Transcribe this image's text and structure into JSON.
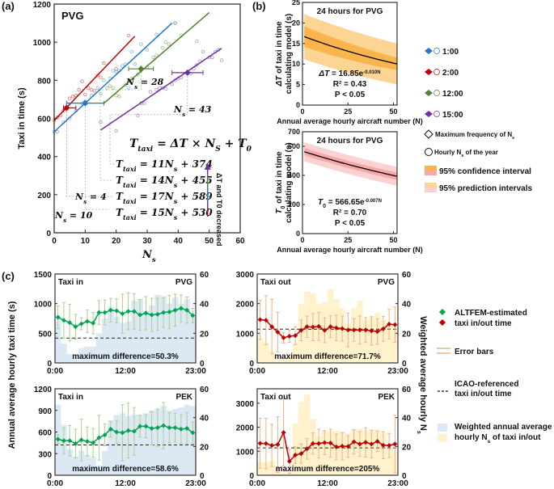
{
  "panel_labels": {
    "a": "(a)",
    "b": "(b)",
    "c": "(c)"
  },
  "chart_data": [
    {
      "id": "a",
      "type": "scatter",
      "title": "PVG",
      "xlabel": "N_s",
      "ylabel": "Taxi in time (s)",
      "xlim": [
        0,
        60
      ],
      "ylim": [
        0,
        1200
      ],
      "xticks": [
        0,
        10,
        20,
        30,
        40,
        50,
        60
      ],
      "yticks": [
        0,
        200,
        400,
        600,
        800,
        1000,
        1200
      ],
      "formula": "T_taxi = ΔT × N_S + T_0",
      "arrow_label": "ΔT and T0 decreased",
      "series": [
        {
          "name": "2:00",
          "color": "#c00000",
          "slope": 17,
          "intercept": 589,
          "fit_x": [
            0,
            26
          ],
          "mode_ns": 4,
          "mode_y": 655,
          "xerr": [
            3,
            7
          ],
          "ns_label": "N_s = 4",
          "equation": "T_taxi = 17N_s + 589",
          "points": [
            [
              0,
              590
            ],
            [
              1,
              605
            ],
            [
              2,
              615
            ],
            [
              3,
              640
            ],
            [
              5,
              705
            ],
            [
              6,
              715
            ],
            [
              7,
              720
            ],
            [
              8,
              750
            ],
            [
              9,
              795
            ],
            [
              10,
              725
            ],
            [
              11,
              760
            ],
            [
              12,
              750
            ],
            [
              13,
              745
            ],
            [
              14,
              825
            ],
            [
              15,
              815
            ],
            [
              16,
              890
            ],
            [
              20,
              860
            ],
            [
              24,
              1035
            ]
          ]
        },
        {
          "name": "1:00",
          "color": "#1f78c8",
          "slope": 15,
          "intercept": 530,
          "fit_x": [
            0,
            38
          ],
          "mode_ns": 10,
          "mode_y": 680,
          "xerr": [
            4,
            16
          ],
          "ns_label": "N_s = 10",
          "equation": "T_taxi = 15N_s + 530",
          "points": [
            [
              0,
              530
            ],
            [
              1,
              530
            ],
            [
              3,
              580
            ],
            [
              5,
              600
            ],
            [
              7,
              640
            ],
            [
              9,
              680
            ],
            [
              10,
              690
            ],
            [
              12,
              720
            ],
            [
              14,
              760
            ],
            [
              16,
              800
            ],
            [
              18,
              810
            ],
            [
              19,
              850
            ],
            [
              20,
              845
            ],
            [
              21,
              850
            ],
            [
              22,
              875
            ],
            [
              23,
              885
            ],
            [
              24,
              760
            ],
            [
              25,
              950
            ],
            [
              26,
              885
            ],
            [
              28,
              990
            ],
            [
              30,
              960
            ],
            [
              33,
              1040
            ],
            [
              39,
              1100
            ]
          ]
        },
        {
          "name": "12:00",
          "color": "#548235",
          "slope": 14,
          "intercept": 455,
          "fit_x": [
            16,
            50
          ],
          "mode_ns": 28,
          "mode_y": 860,
          "xerr": [
            24,
            32
          ],
          "ns_label": "N_s = 28",
          "equation": "T_taxi = 14N_s + 455",
          "points": [
            [
              15,
              730
            ],
            [
              17,
              760
            ],
            [
              18,
              770
            ],
            [
              19,
              760
            ],
            [
              20,
              720
            ],
            [
              21,
              715
            ],
            [
              23,
              775
            ],
            [
              25,
              810
            ],
            [
              27,
              830
            ],
            [
              28,
              850
            ],
            [
              30,
              870
            ],
            [
              32,
              920
            ],
            [
              33,
              930
            ],
            [
              35,
              970
            ],
            [
              36,
              1000
            ],
            [
              37,
              990
            ],
            [
              39,
              1100
            ],
            [
              41,
              1035
            ],
            [
              46,
              1005
            ]
          ]
        },
        {
          "name": "15:00",
          "color": "#7030a0",
          "slope": 11,
          "intercept": 374,
          "fit_x": [
            15,
            54
          ],
          "mode_ns": 43,
          "mode_y": 840,
          "xerr": [
            38,
            48
          ],
          "ns_label": "N_s = 43",
          "equation": "T_taxi = 11N_s + 374",
          "points": [
            [
              15,
              580
            ],
            [
              20,
              535
            ],
            [
              27,
              615
            ],
            [
              28,
              680
            ],
            [
              29,
              680
            ],
            [
              31,
              740
            ],
            [
              33,
              750
            ],
            [
              34,
              760
            ],
            [
              35,
              760
            ],
            [
              36,
              755
            ],
            [
              38,
              780
            ],
            [
              39,
              800
            ],
            [
              40,
              810
            ],
            [
              41,
              815
            ],
            [
              43,
              840
            ],
            [
              44,
              835
            ],
            [
              45,
              860
            ],
            [
              46,
              880
            ],
            [
              47,
              900
            ],
            [
              48,
              950
            ],
            [
              50,
              920
            ],
            [
              51,
              920
            ],
            [
              52,
              950
            ],
            [
              53,
              960
            ],
            [
              54,
              905
            ]
          ]
        }
      ]
    },
    {
      "id": "b-top",
      "type": "line",
      "title": "24 hours for PVG",
      "xlabel": "Annual average hourly aircraft number (N)",
      "ylabel": "ΔT of taxi in time calculating model (s)",
      "xlim": [
        0,
        52
      ],
      "ylim": [
        0,
        25
      ],
      "xticks": [
        0,
        25,
        50
      ],
      "yticks": [
        0,
        5,
        10,
        15,
        20,
        25
      ],
      "equation": "ΔT = 16.85e",
      "exponent": "-0.010N",
      "r2": "R² = 0.43",
      "p": "P < 0.05",
      "a": 16.85,
      "b": -0.01,
      "ci_halfwidth": [
        2.5,
        1.5
      ],
      "pi_halfwidth": [
        5.5,
        5.0
      ],
      "colors": {
        "line": "#000000",
        "ci": "#f9b44c",
        "pi": "#fcd595"
      }
    },
    {
      "id": "b-bottom",
      "type": "line",
      "title": "24 hours for PVG",
      "xlabel": "Annual average hourly aircraft number (N)",
      "ylabel": "T0 of taxi in time calculating model (s)",
      "xlim": [
        0,
        52
      ],
      "ylim": [
        0,
        700
      ],
      "xticks": [
        0,
        25,
        50
      ],
      "yticks": [
        0,
        200,
        400,
        600,
        700
      ],
      "equation": "T0 = 566.65e",
      "exponent": "-0.007N",
      "r2": "R² = 0.70",
      "p": "P < 0.05",
      "a": 566.65,
      "b": -0.007,
      "ci_halfwidth": [
        25,
        25
      ],
      "pi_halfwidth": [
        65,
        65
      ],
      "colors": {
        "line": "#000000",
        "ci": "#f7a8a8",
        "pi": "#fbd2d2"
      }
    },
    {
      "id": "c-taxi-in-pvg",
      "type": "line",
      "label": "Taxi in",
      "airport": "PVG",
      "ylim": [
        0,
        1500
      ],
      "yticks": [
        0,
        500,
        1000,
        1500
      ],
      "y2lim": [
        0,
        60
      ],
      "y2ticks": [
        0,
        20,
        40,
        60
      ],
      "xticks": [
        "0:00",
        "12:00",
        "23:00"
      ],
      "icao": 420,
      "annotation": "maximum difference=50.3%",
      "color": "#00a550",
      "err_color": "#a9d18e",
      "bar_color": "#dce9f5",
      "values": [
        770,
        720,
        680,
        610,
        660,
        700,
        670,
        850,
        850,
        890,
        880,
        830,
        870,
        870,
        810,
        840,
        810,
        820,
        850,
        860,
        890,
        920,
        890,
        800
      ],
      "err": [
        190,
        300,
        310,
        210,
        100,
        190,
        180,
        200,
        210,
        200,
        200,
        330,
        310,
        300,
        260,
        280,
        280,
        270,
        250,
        280,
        270,
        230,
        220,
        120
      ],
      "bars": [
        28,
        13,
        6,
        4,
        10,
        11,
        11,
        20,
        30,
        38,
        31,
        27,
        28,
        42,
        43,
        35,
        39,
        46,
        45,
        40,
        44,
        40,
        43,
        31
      ]
    },
    {
      "id": "c-taxi-in-pek",
      "type": "line",
      "label": "Taxi in",
      "airport": "PEK",
      "ylim": [
        0,
        1200
      ],
      "yticks": [
        0,
        300,
        600,
        900,
        1200
      ],
      "y2lim": [
        0,
        60
      ],
      "y2ticks": [
        0,
        20,
        40,
        60
      ],
      "xticks": [
        "0:00",
        "12:00",
        "23:00"
      ],
      "icao": 420,
      "annotation": "maximum difference=58.6%",
      "color": "#00a550",
      "err_color": "#a9d18e",
      "bar_color": "#dce9f5",
      "values": [
        500,
        480,
        480,
        440,
        490,
        470,
        450,
        520,
        560,
        640,
        600,
        590,
        620,
        610,
        680,
        680,
        650,
        660,
        690,
        660,
        660,
        640,
        650,
        590
      ],
      "err": [
        60,
        180,
        210,
        200,
        290,
        200,
        200,
        310,
        150,
        110,
        160,
        390,
        380,
        330,
        150,
        160,
        230,
        260,
        320,
        210,
        200,
        200,
        220,
        150
      ],
      "bars": [
        49,
        35,
        18,
        13,
        17,
        14,
        12,
        7,
        17,
        38,
        42,
        43,
        41,
        42,
        42,
        43,
        45,
        46,
        48,
        45,
        46,
        47,
        49,
        48
      ]
    },
    {
      "id": "c-taxi-out-pvg",
      "type": "line",
      "label": "Taxi out",
      "airport": "PVG",
      "ylim": [
        0,
        3000
      ],
      "yticks": [
        0,
        1000,
        2000,
        3000
      ],
      "y2lim": [
        0,
        60
      ],
      "y2ticks": [
        0,
        20,
        40,
        60
      ],
      "xticks": [
        "0:00",
        "12:00",
        "23:00"
      ],
      "icao": 1140,
      "annotation": "maximum difference=71.7%",
      "color": "#c00000",
      "err_color": "#f4b183",
      "bar_color": "#fff2cc",
      "values": [
        1460,
        1440,
        1220,
        1040,
        850,
        900,
        920,
        1100,
        1220,
        1210,
        1230,
        1100,
        1220,
        1180,
        1160,
        1110,
        1110,
        1110,
        1110,
        1080,
        1060,
        1150,
        1310,
        1290
      ],
      "err": [
        660,
        830,
        920,
        670,
        180,
        200,
        300,
        350,
        360,
        460,
        470,
        420,
        370,
        430,
        420,
        570,
        380,
        470,
        420,
        480,
        430,
        420,
        500,
        600
      ],
      "bars": [
        16,
        14,
        8,
        3,
        2,
        6,
        13,
        40,
        48,
        47,
        40,
        41,
        50,
        43,
        37,
        26,
        37,
        42,
        29,
        31,
        34,
        29,
        26,
        24
      ]
    },
    {
      "id": "c-taxi-out-pek",
      "type": "line",
      "label": "Taxi out",
      "airport": "PEK",
      "ylim": [
        0,
        3600
      ],
      "yticks": [
        0,
        1000,
        2000,
        3000
      ],
      "y2lim": [
        0,
        60
      ],
      "y2ticks": [
        0,
        20,
        40,
        60
      ],
      "xticks": [
        "0:00",
        "12:00",
        "23:00"
      ],
      "icao": 1140,
      "annotation": "maximum difference=205%",
      "color": "#c00000",
      "err_color": "#f4b183",
      "bar_color": "#fff2cc",
      "values": [
        1330,
        1320,
        1240,
        1280,
        1780,
        580,
        840,
        900,
        1100,
        1320,
        1320,
        1360,
        1340,
        1180,
        1210,
        1200,
        1390,
        1300,
        1370,
        1300,
        1410,
        1250,
        1240,
        1300
      ],
      "err": [
        1040,
        1050,
        880,
        1160,
        1400,
        500,
        340,
        400,
        430,
        440,
        600,
        500,
        580,
        540,
        570,
        450,
        510,
        520,
        610,
        570,
        420,
        560,
        500,
        1200
      ],
      "bars": [
        9,
        9,
        10,
        4,
        2,
        2,
        36,
        51,
        56,
        39,
        27,
        31,
        31,
        31,
        30,
        29,
        32,
        32,
        31,
        32,
        32,
        29,
        19,
        16
      ]
    }
  ],
  "axis_labels": {
    "c_left": "Annual average hourly taxi time (s)",
    "c_right": "Weighted average hourly N",
    "c_right_sub": "s"
  },
  "legend_b": {
    "items": [
      {
        "label": "1:00",
        "color": "#1f78c8"
      },
      {
        "label": "2:00",
        "color": "#c00000"
      },
      {
        "label": "12:00",
        "color": "#548235"
      },
      {
        "label": "15:00",
        "color": "#7030a0"
      }
    ],
    "max_freq": "Maximum frequency of N",
    "hourly": "Hourly N",
    "hourly_suffix": "of the year",
    "ci": "95% confidence interval",
    "pi": "95% prediction intervals"
  },
  "legend_c": {
    "altfem_1": "ALTFEM-estimated",
    "altfem_2": "taxi in/out time",
    "error_bars": "Error bars",
    "icao_1": "ICAO-referenced",
    "icao_2": "taxi in/out time",
    "weighted_1": "Weighted annual average",
    "weighted_2": "hourly N",
    "weighted_2b": "of taxi in/out"
  }
}
